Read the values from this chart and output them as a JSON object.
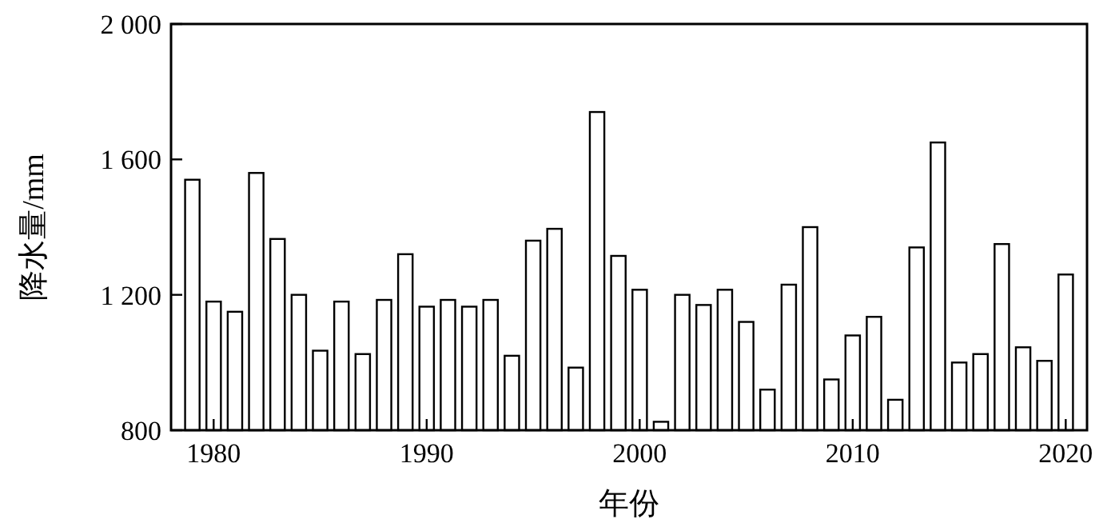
{
  "chart_data": {
    "type": "bar",
    "xlabel": "年份",
    "ylabel": "降水量/mm",
    "color": "#ffffff",
    "x": [
      1979,
      1980,
      1981,
      1982,
      1983,
      1984,
      1985,
      1986,
      1987,
      1988,
      1989,
      1990,
      1991,
      1992,
      1993,
      1994,
      1995,
      1996,
      1997,
      1998,
      1999,
      2000,
      2001,
      2002,
      2003,
      2004,
      2005,
      2006,
      2007,
      2008,
      2009,
      2010,
      2011,
      2012,
      2013,
      2014,
      2015,
      2016,
      2017,
      2018,
      2019,
      2020
    ],
    "values": [
      1540,
      1180,
      1150,
      1560,
      1365,
      1200,
      1035,
      1180,
      1025,
      1185,
      1320,
      1165,
      1185,
      1165,
      1185,
      1020,
      1360,
      1395,
      985,
      1740,
      1315,
      1215,
      825,
      1200,
      1170,
      1215,
      1120,
      920,
      1230,
      1400,
      950,
      1080,
      1135,
      890,
      1340,
      1650,
      1000,
      1025,
      1350,
      1045,
      1005,
      1260
    ],
    "xlim": [
      1978,
      2021
    ],
    "xticks": [
      1980,
      1990,
      2000,
      2010,
      2020
    ],
    "ylim": [
      800,
      2000
    ],
    "yticks": [
      {
        "value": 800,
        "label": "800"
      },
      {
        "value": 1200,
        "label": "1 200"
      },
      {
        "value": 1600,
        "label": "1 600"
      },
      {
        "value": 2000,
        "label": "2 000"
      }
    ],
    "grid": false
  }
}
